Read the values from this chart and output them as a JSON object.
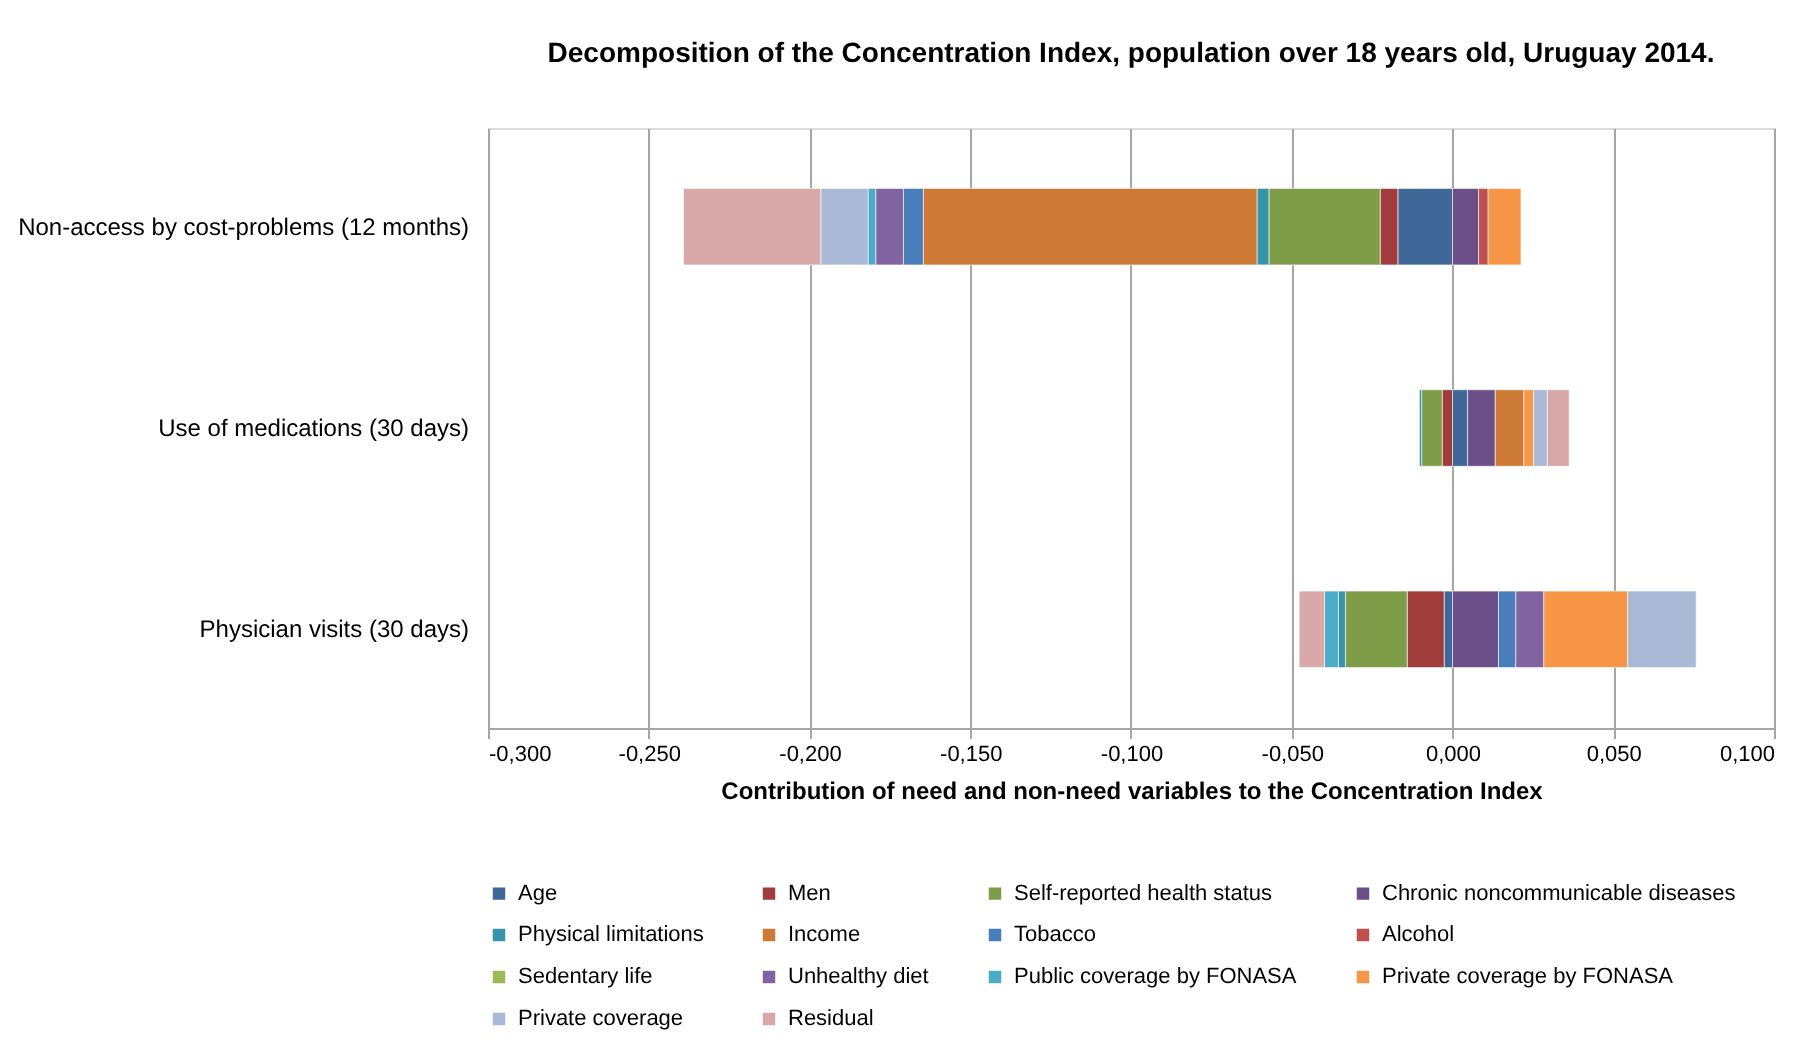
{
  "chart_data": {
    "type": "bar",
    "orientation": "horizontal",
    "stacked": true,
    "title": "Decomposition of the Concentration Index, population over 18 years old, Uruguay 2014.",
    "xlabel": "Contribution of need and non-need variables to the Concentration Index",
    "categories": [
      "Non-access by cost-problems  (12 months)",
      "Use of medications (30 days)",
      "Physician visits (30 days)"
    ],
    "series": [
      {
        "name": "Age",
        "color": "#3f6797",
        "values": [
          -0.017,
          0.0047,
          -0.0026
        ]
      },
      {
        "name": "Men",
        "color": "#a03c3b",
        "values": [
          -0.0055,
          -0.0032,
          -0.0115
        ]
      },
      {
        "name": "Self-reported health status",
        "color": "#7f9c48",
        "values": [
          -0.0346,
          -0.0064,
          -0.0192
        ]
      },
      {
        "name": "Chronic noncommunicable diseases",
        "color": "#6a4f88",
        "values": [
          0.0081,
          0.0086,
          0.0143
        ]
      },
      {
        "name": "Physical limitations",
        "color": "#3795a9",
        "values": [
          -0.0037,
          -0.0007,
          -0.0022
        ]
      },
      {
        "name": "Income",
        "color": "#cc7a35",
        "values": [
          -0.1038,
          0.0089,
          null
        ]
      },
      {
        "name": "Tobacco",
        "color": "#4a7ebb",
        "values": [
          -0.0062,
          null,
          0.0054
        ]
      },
      {
        "name": "Alcohol",
        "color": "#c0504d",
        "values": [
          0.003,
          null,
          null
        ]
      },
      {
        "name": "Sedentary life",
        "color": "#9bbb59",
        "values": [
          null,
          null,
          null
        ]
      },
      {
        "name": "Unhealthy diet",
        "color": "#8064a2",
        "values": [
          -0.0086,
          null,
          0.0087
        ]
      },
      {
        "name": "Public coverage by FONASA",
        "color": "#4bacc6",
        "values": [
          -0.0024,
          null,
          -0.0043
        ]
      },
      {
        "name": "Private coverage by FONASA",
        "color": "#f79646",
        "values": [
          0.0102,
          0.003,
          0.0261
        ]
      },
      {
        "name": "Private coverage",
        "color": "#a9b9d6",
        "values": [
          -0.0147,
          0.0043,
          0.0213
        ]
      },
      {
        "name": "Residual",
        "color": "#d9a9a9",
        "values": [
          -0.0427,
          0.0068,
          -0.0079
        ]
      }
    ],
    "xlim": [
      -0.3,
      0.1
    ],
    "xticks": [
      {
        "value": -0.3,
        "label": "-0,300"
      },
      {
        "value": -0.25,
        "label": "-0,250"
      },
      {
        "value": -0.2,
        "label": "-0,200"
      },
      {
        "value": -0.15,
        "label": "-0,150"
      },
      {
        "value": -0.1,
        "label": "-0,100"
      },
      {
        "value": -0.05,
        "label": "-0,050"
      },
      {
        "value": 0,
        "label": "0,000"
      },
      {
        "value": 0.05,
        "label": "0,050"
      },
      {
        "value": 0.1,
        "label": "0,100"
      }
    ],
    "grid": "x",
    "legend": "bottom"
  }
}
